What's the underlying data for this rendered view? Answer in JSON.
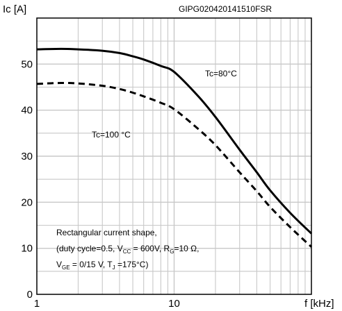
{
  "figure_code": "GIPG020420141510FSR",
  "chart_data": {
    "type": "line",
    "ylabel": "Ic [A]",
    "xlabel": "f [kHz]",
    "x_scale": "log",
    "xlim": [
      1,
      100
    ],
    "ylim": [
      0,
      60
    ],
    "x_tick_labels": [
      {
        "value": 1,
        "label": "1"
      },
      {
        "value": 10,
        "label": "10"
      }
    ],
    "y_tick_labels": [
      {
        "value": 0,
        "label": "0"
      },
      {
        "value": 10,
        "label": "10"
      },
      {
        "value": 20,
        "label": "20"
      },
      {
        "value": 30,
        "label": "30"
      },
      {
        "value": 40,
        "label": "40"
      },
      {
        "value": 50,
        "label": "50"
      }
    ],
    "grid": true,
    "series": [
      {
        "name": "Tc=80°C",
        "style": "solid",
        "x": [
          1,
          1.5,
          2,
          3,
          4,
          5,
          6,
          8,
          10,
          15,
          20,
          30,
          40,
          50,
          70,
          100
        ],
        "y": [
          53.2,
          53.3,
          53.2,
          52.9,
          52.4,
          51.7,
          51.0,
          49.6,
          48.3,
          43.0,
          38.5,
          31.4,
          26.5,
          22.6,
          17.7,
          13.2
        ]
      },
      {
        "name": "Tc=100 °C",
        "style": "dashed",
        "x": [
          1,
          1.5,
          2,
          3,
          4,
          5,
          6,
          8,
          10,
          15,
          20,
          30,
          40,
          50,
          70,
          100
        ],
        "y": [
          45.7,
          45.9,
          45.8,
          45.3,
          44.6,
          43.8,
          43.0,
          41.6,
          40.2,
          35.9,
          32.4,
          26.5,
          22.4,
          19.0,
          14.6,
          10.3
        ]
      }
    ],
    "annotations": {
      "tc80": "Tc=80°C",
      "tc100": "Tc=100 °C",
      "note1": "Rectangular current shape,",
      "note2a": "(duty cycle=0.5, V",
      "note2b": "CC",
      "note2c": " = 600V, R",
      "note2d": "G",
      "note2e": "=10 Ω,",
      "note3a": "V",
      "note3b": "GE",
      "note3c": " = 0/15 V, T",
      "note3d": "J",
      "note3e": " =175°C)"
    }
  }
}
